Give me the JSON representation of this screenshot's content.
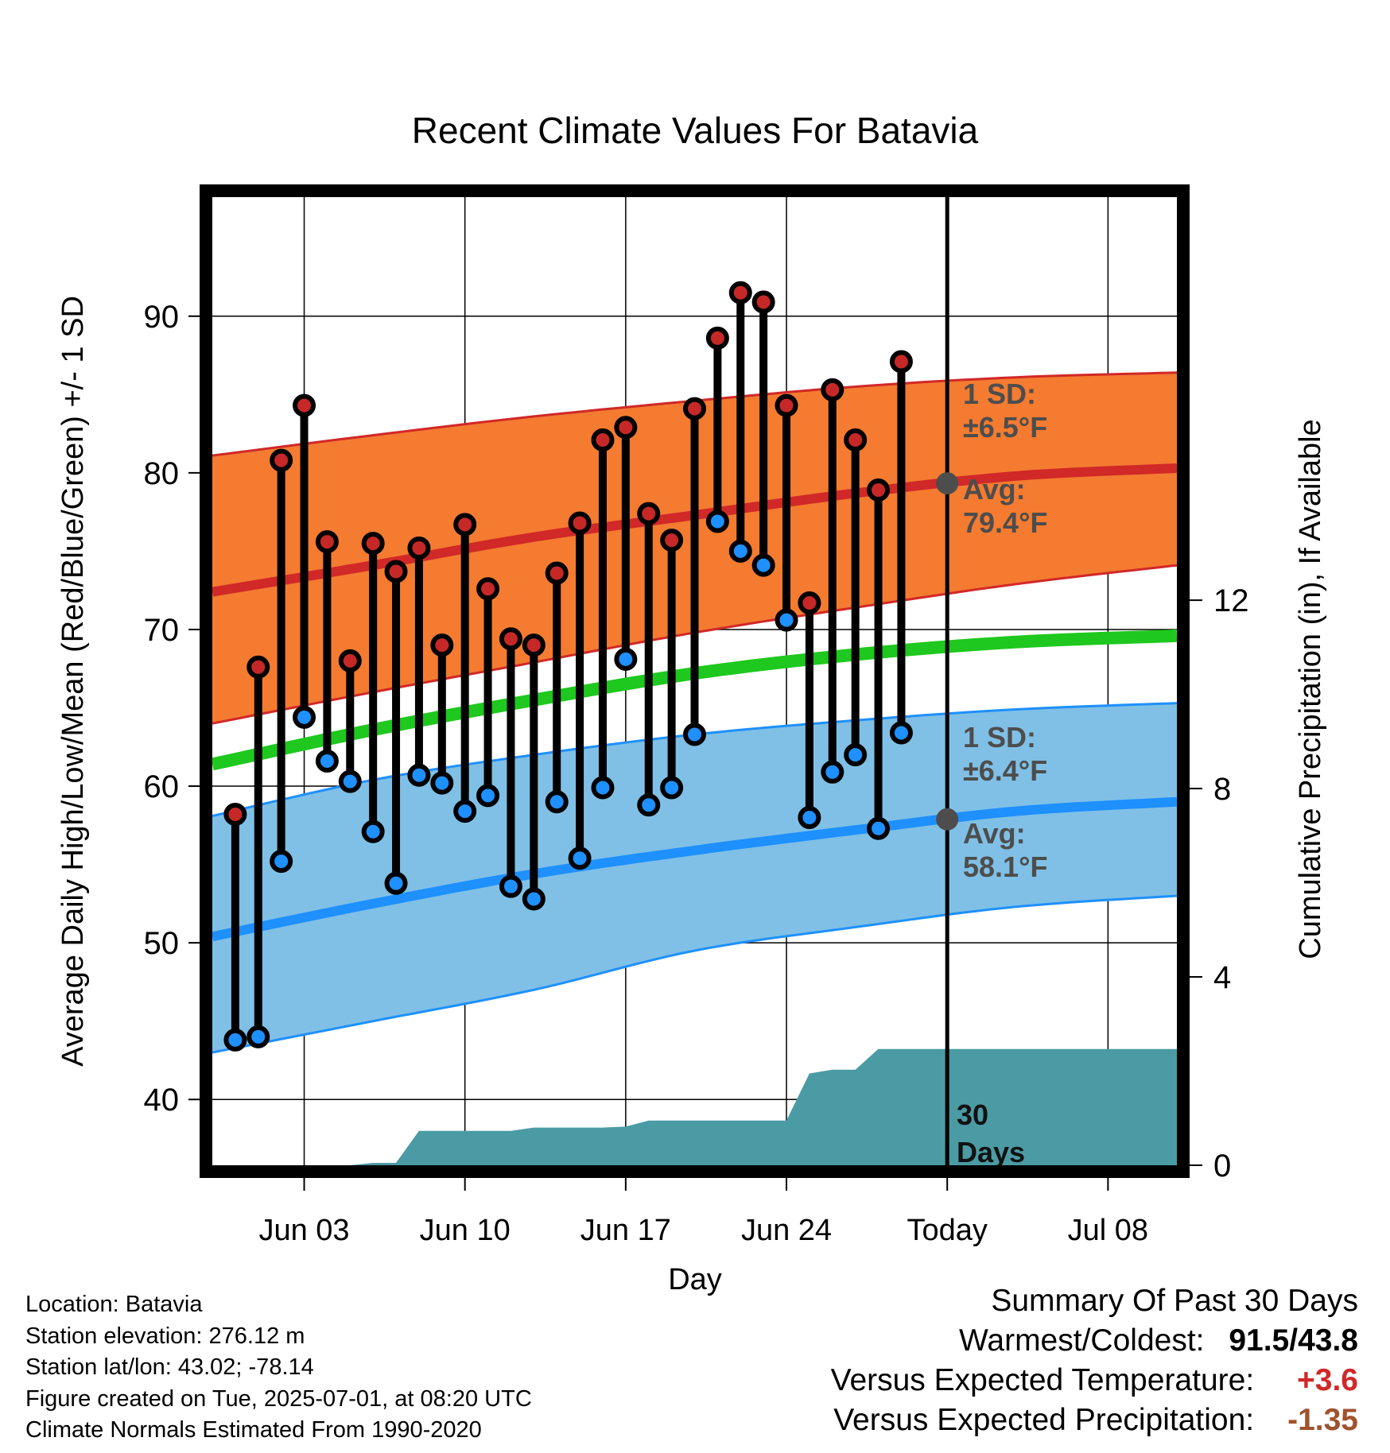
{
  "chart_data": {
    "type": "range-bar",
    "title": "Recent Climate Values For Batavia",
    "xlabel": "Day",
    "ylabel": "Average Daily High/Low/Mean (Red/Blue/Green) +/- 1 SD",
    "y2label": "Cumulative Precipitation (in), If Available",
    "ylim": [
      35.8,
      97.6
    ],
    "y2lim": [
      0,
      20.56
    ],
    "xlim": [
      "2025-05-30",
      "2025-07-11"
    ],
    "yticks": [
      "40",
      "50",
      "60",
      "70",
      "80",
      "90"
    ],
    "y2ticks": [
      "0",
      "4",
      "8",
      "12"
    ],
    "xticks": [
      {
        "date": "2025-06-03",
        "label": "Jun 03"
      },
      {
        "date": "2025-06-10",
        "label": "Jun 10"
      },
      {
        "date": "2025-06-17",
        "label": "Jun 17"
      },
      {
        "date": "2025-06-24",
        "label": "Jun 24"
      },
      {
        "date": "2025-07-01",
        "label": "Today"
      },
      {
        "date": "2025-07-08",
        "label": "Jul 08"
      }
    ],
    "today": "2025-07-01",
    "grid": true,
    "daily": [
      {
        "date": "2025-05-31",
        "high": 58.2,
        "low": 43.8
      },
      {
        "date": "2025-06-01",
        "high": 67.6,
        "low": 44.0
      },
      {
        "date": "2025-06-02",
        "high": 80.8,
        "low": 55.2
      },
      {
        "date": "2025-06-03",
        "high": 84.3,
        "low": 64.4
      },
      {
        "date": "2025-06-04",
        "high": 75.6,
        "low": 61.6
      },
      {
        "date": "2025-06-05",
        "high": 68.0,
        "low": 60.3
      },
      {
        "date": "2025-06-06",
        "high": 75.5,
        "low": 57.1
      },
      {
        "date": "2025-06-07",
        "high": 73.7,
        "low": 53.8
      },
      {
        "date": "2025-06-08",
        "high": 75.2,
        "low": 60.7
      },
      {
        "date": "2025-06-09",
        "high": 69.0,
        "low": 60.2
      },
      {
        "date": "2025-06-10",
        "high": 76.7,
        "low": 58.4
      },
      {
        "date": "2025-06-11",
        "high": 72.6,
        "low": 59.4
      },
      {
        "date": "2025-06-12",
        "high": 69.4,
        "low": 53.6
      },
      {
        "date": "2025-06-13",
        "high": 69.0,
        "low": 52.8
      },
      {
        "date": "2025-06-14",
        "high": 73.6,
        "low": 59.0
      },
      {
        "date": "2025-06-15",
        "high": 76.8,
        "low": 55.4
      },
      {
        "date": "2025-06-16",
        "high": 82.1,
        "low": 59.9
      },
      {
        "date": "2025-06-17",
        "high": 82.9,
        "low": 68.1
      },
      {
        "date": "2025-06-18",
        "high": 77.4,
        "low": 58.8
      },
      {
        "date": "2025-06-19",
        "high": 75.7,
        "low": 59.9
      },
      {
        "date": "2025-06-20",
        "high": 84.1,
        "low": 63.3
      },
      {
        "date": "2025-06-21",
        "high": 88.6,
        "low": 76.9
      },
      {
        "date": "2025-06-22",
        "high": 91.5,
        "low": 75.0
      },
      {
        "date": "2025-06-23",
        "high": 90.9,
        "low": 74.1
      },
      {
        "date": "2025-06-24",
        "high": 84.3,
        "low": 70.6
      },
      {
        "date": "2025-06-25",
        "high": 71.7,
        "low": 58.0
      },
      {
        "date": "2025-06-26",
        "high": 85.3,
        "low": 60.9
      },
      {
        "date": "2025-06-27",
        "high": 82.1,
        "low": 62.0
      },
      {
        "date": "2025-06-28",
        "high": 78.9,
        "low": 57.3
      },
      {
        "date": "2025-06-29",
        "high": 87.1,
        "low": 63.4
      }
    ],
    "normals": {
      "dates": [
        "2025-05-30",
        "2025-06-06",
        "2025-06-13",
        "2025-06-20",
        "2025-06-27",
        "2025-07-04",
        "2025-07-11"
      ],
      "avg_high": [
        72.4,
        74.1,
        75.9,
        77.3,
        78.7,
        79.8,
        80.3
      ],
      "high_sd_upper": [
        81.1,
        82.4,
        83.6,
        84.6,
        85.5,
        86.1,
        86.4
      ],
      "high_sd_lower": [
        64.0,
        66.0,
        67.9,
        69.8,
        71.4,
        72.9,
        74.1
      ],
      "avg_mean": [
        61.4,
        63.6,
        65.5,
        67.2,
        68.4,
        69.2,
        69.6
      ],
      "avg_low": [
        50.4,
        52.5,
        54.4,
        55.9,
        57.2,
        58.4,
        59.0
      ],
      "low_sd_upper": [
        58.1,
        60.4,
        62.0,
        63.3,
        64.2,
        64.9,
        65.3
      ],
      "low_sd_lower": [
        43.0,
        45.0,
        47.0,
        49.5,
        51.0,
        52.3,
        53.0
      ]
    },
    "precip": {
      "dates": [
        "2025-05-30",
        "2025-06-05",
        "2025-06-06",
        "2025-06-07",
        "2025-06-08",
        "2025-06-12",
        "2025-06-13",
        "2025-06-16",
        "2025-06-17",
        "2025-06-18",
        "2025-06-24",
        "2025-06-25",
        "2025-06-26",
        "2025-06-27",
        "2025-06-28",
        "2025-07-11"
      ],
      "cumulative": [
        0,
        0,
        0.05,
        0.05,
        0.73,
        0.73,
        0.8,
        0.8,
        0.82,
        0.95,
        0.95,
        1.95,
        2.03,
        2.03,
        2.47,
        2.47
      ]
    },
    "annotations": {
      "high_sd": "1 SD:",
      "high_sd_value": "±6.5°F",
      "high_avg": "Avg:",
      "high_avg_value": "79.4°F",
      "low_sd": "1 SD:",
      "low_sd_value": "±6.4°F",
      "low_avg": "Avg:",
      "low_avg_value": "58.1°F",
      "period_number": "30",
      "period_unit": "Days"
    },
    "colors": {
      "high_band": "#f47b30",
      "high_line": "#d12828",
      "low_band": "#80c0e6",
      "low_line": "#1e90ff",
      "mean_line": "#1ec81e",
      "precip": "#4a9ba4",
      "high_marker": "#c62828",
      "low_marker": "#1e90ff",
      "annotation": "#4d4d4d"
    }
  },
  "footer": {
    "location": "Location: Batavia",
    "elevation": "Station elevation: 276.12 m",
    "latlon": "Station lat/lon: 43.02; -78.14",
    "created": "Figure created on Tue, 2025-07-01, at 08:20 UTC",
    "normals": "Climate Normals Estimated From 1990-2020"
  },
  "summary": {
    "title": "Summary Of Past 30 Days",
    "warmest_label": "Warmest/Coldest:",
    "warmest_value": "91.5/43.8",
    "temp_label": "Versus Expected Temperature:",
    "temp_value": "+3.6",
    "temp_color": "#d12828",
    "precip_label": "Versus Expected Precipitation:",
    "precip_value": "-1.35",
    "precip_color": "#a0522d"
  }
}
